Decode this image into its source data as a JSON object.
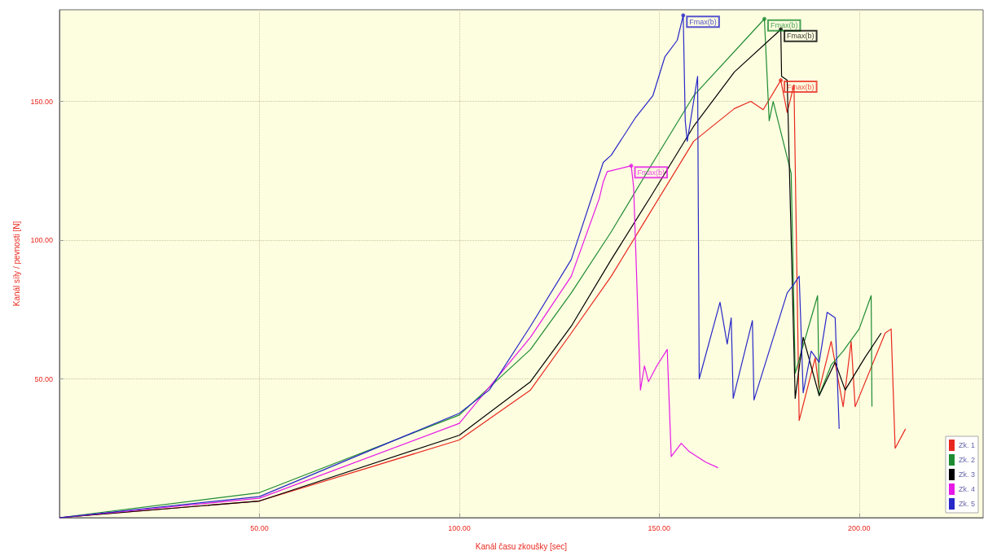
{
  "chart_data": {
    "type": "line",
    "xlabel": "Kanál času zkoušky [sec]",
    "ylabel": "Kanál síly / pevnosti [N]",
    "xlim": [
      0,
      231
    ],
    "ylim": [
      0,
      183
    ],
    "xticks": [
      {
        "value": 50,
        "label": "50.00"
      },
      {
        "value": 100,
        "label": "100.00"
      },
      {
        "value": 150,
        "label": "150.00"
      },
      {
        "value": 200,
        "label": "200.00"
      }
    ],
    "yticks": [
      {
        "value": 50,
        "label": "50.00"
      },
      {
        "value": 100,
        "label": "100.00"
      },
      {
        "value": 150,
        "label": "150.00"
      }
    ],
    "grid": true,
    "legend": "bottom right",
    "marker": "none",
    "line_style": "solid",
    "series": [
      {
        "name": "Zk. 1",
        "color": "#e8281e",
        "x": [
          0,
          50,
          100,
          117.8,
          128,
          138,
          148,
          158.6,
          168.8,
          172.9,
          176,
          180.4,
          182,
          183.7,
          185,
          189,
          190,
          193,
          196,
          198,
          199,
          206.5,
          208,
          209,
          211.6
        ],
        "values": [
          0,
          6,
          28,
          46,
          66.5,
          87,
          110.6,
          135.6,
          147.4,
          150,
          147,
          157.6,
          146,
          156,
          35,
          57.6,
          46,
          63.5,
          40,
          63.5,
          40,
          66.5,
          68,
          25,
          32
        ]
      },
      {
        "name": "Zk. 2",
        "color": "#1e8c32",
        "x": [
          0,
          50,
          100,
          117.8,
          128,
          138,
          148,
          158.6,
          176.3,
          177.5,
          178.5,
          183,
          184,
          189.6,
          190,
          193,
          196,
          200,
          203,
          203.2
        ],
        "values": [
          0,
          9,
          37,
          60.6,
          81,
          103,
          127,
          152,
          179.7,
          143,
          150,
          124,
          52,
          80,
          44,
          55,
          60,
          68,
          80,
          40
        ]
      },
      {
        "name": "Zk. 3",
        "color": "#000000",
        "x": [
          0,
          50,
          100,
          117.8,
          128,
          138,
          148,
          158.6,
          168.8,
          180.4,
          180.6,
          182,
          184,
          186,
          190,
          194,
          196.5,
          201.4,
          205.5
        ],
        "values": [
          0,
          6,
          29.7,
          49,
          69,
          93,
          116,
          141,
          160.6,
          175.9,
          159,
          157.6,
          43,
          65,
          44,
          56,
          46,
          57.6,
          66.5
        ]
      },
      {
        "name": "Zk. 4",
        "color": "#e619e6",
        "x": [
          0,
          50,
          100,
          117.8,
          128,
          135,
          136,
          137,
          143,
          143.6,
          145.3,
          146.3,
          147.3,
          149.4,
          152,
          153,
          155.5,
          157.5,
          161.6,
          164.7
        ],
        "values": [
          0,
          7,
          34,
          65,
          87,
          115,
          121,
          124.7,
          126.8,
          119,
          46,
          54.7,
          49,
          54.7,
          60.6,
          22,
          26.8,
          23.8,
          20,
          18
        ]
      },
      {
        "name": "Zk. 5",
        "color": "#2828c8",
        "x": [
          0,
          50,
          100,
          107.5,
          117.8,
          128,
          136,
          138,
          144,
          148.4,
          151.4,
          154.5,
          156,
          156.5,
          157,
          159.6,
          160,
          165.2,
          167,
          168,
          168.5,
          173.3,
          173.7,
          182,
          183.6,
          185,
          186,
          188,
          190,
          192,
          194,
          195
        ],
        "values": [
          0,
          7.6,
          37.6,
          46,
          69,
          93,
          128,
          130.6,
          144,
          152,
          166,
          172,
          181,
          143,
          135.6,
          159,
          50,
          77.6,
          62.6,
          72,
          43,
          71,
          42.4,
          81,
          84,
          87,
          45,
          60,
          56,
          74,
          72,
          32
        ]
      }
    ],
    "annotations": [
      {
        "text": "Fmax(b)",
        "x": 180.4,
        "y": 157.6
      },
      {
        "text": "Fmax(b)",
        "x": 176.3,
        "y": 179.7
      },
      {
        "text": "Fmax(b)",
        "x": 180.4,
        "y": 175.9
      },
      {
        "text": "Fmax(b)",
        "x": 143,
        "y": 126.8
      },
      {
        "text": "Fmax(b)",
        "x": 156,
        "y": 181
      }
    ]
  }
}
